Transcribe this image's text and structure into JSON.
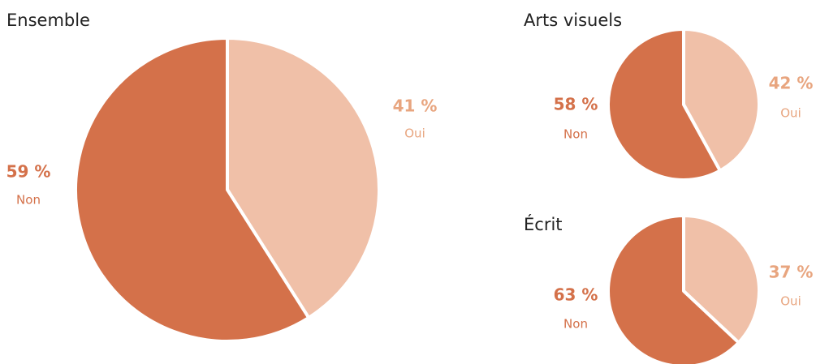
{
  "chart_data": [
    {
      "type": "pie",
      "title": "Ensemble",
      "categories": [
        "Oui",
        "Non"
      ],
      "values": [
        41,
        59
      ],
      "value_labels": [
        "41 %",
        "59 %"
      ],
      "colors": [
        "#f0c0a8",
        "#d4714a"
      ]
    },
    {
      "type": "pie",
      "title": "Arts visuels",
      "categories": [
        "Oui",
        "Non"
      ],
      "values": [
        42,
        58
      ],
      "value_labels": [
        "42 %",
        "58 %"
      ],
      "colors": [
        "#f0c0a8",
        "#d4714a"
      ]
    },
    {
      "type": "pie",
      "title": "Écrit",
      "categories": [
        "Oui",
        "Non"
      ],
      "values": [
        37,
        63
      ],
      "value_labels": [
        "37 %",
        "63 %"
      ],
      "colors": [
        "#f0c0a8",
        "#d4714a"
      ]
    }
  ]
}
